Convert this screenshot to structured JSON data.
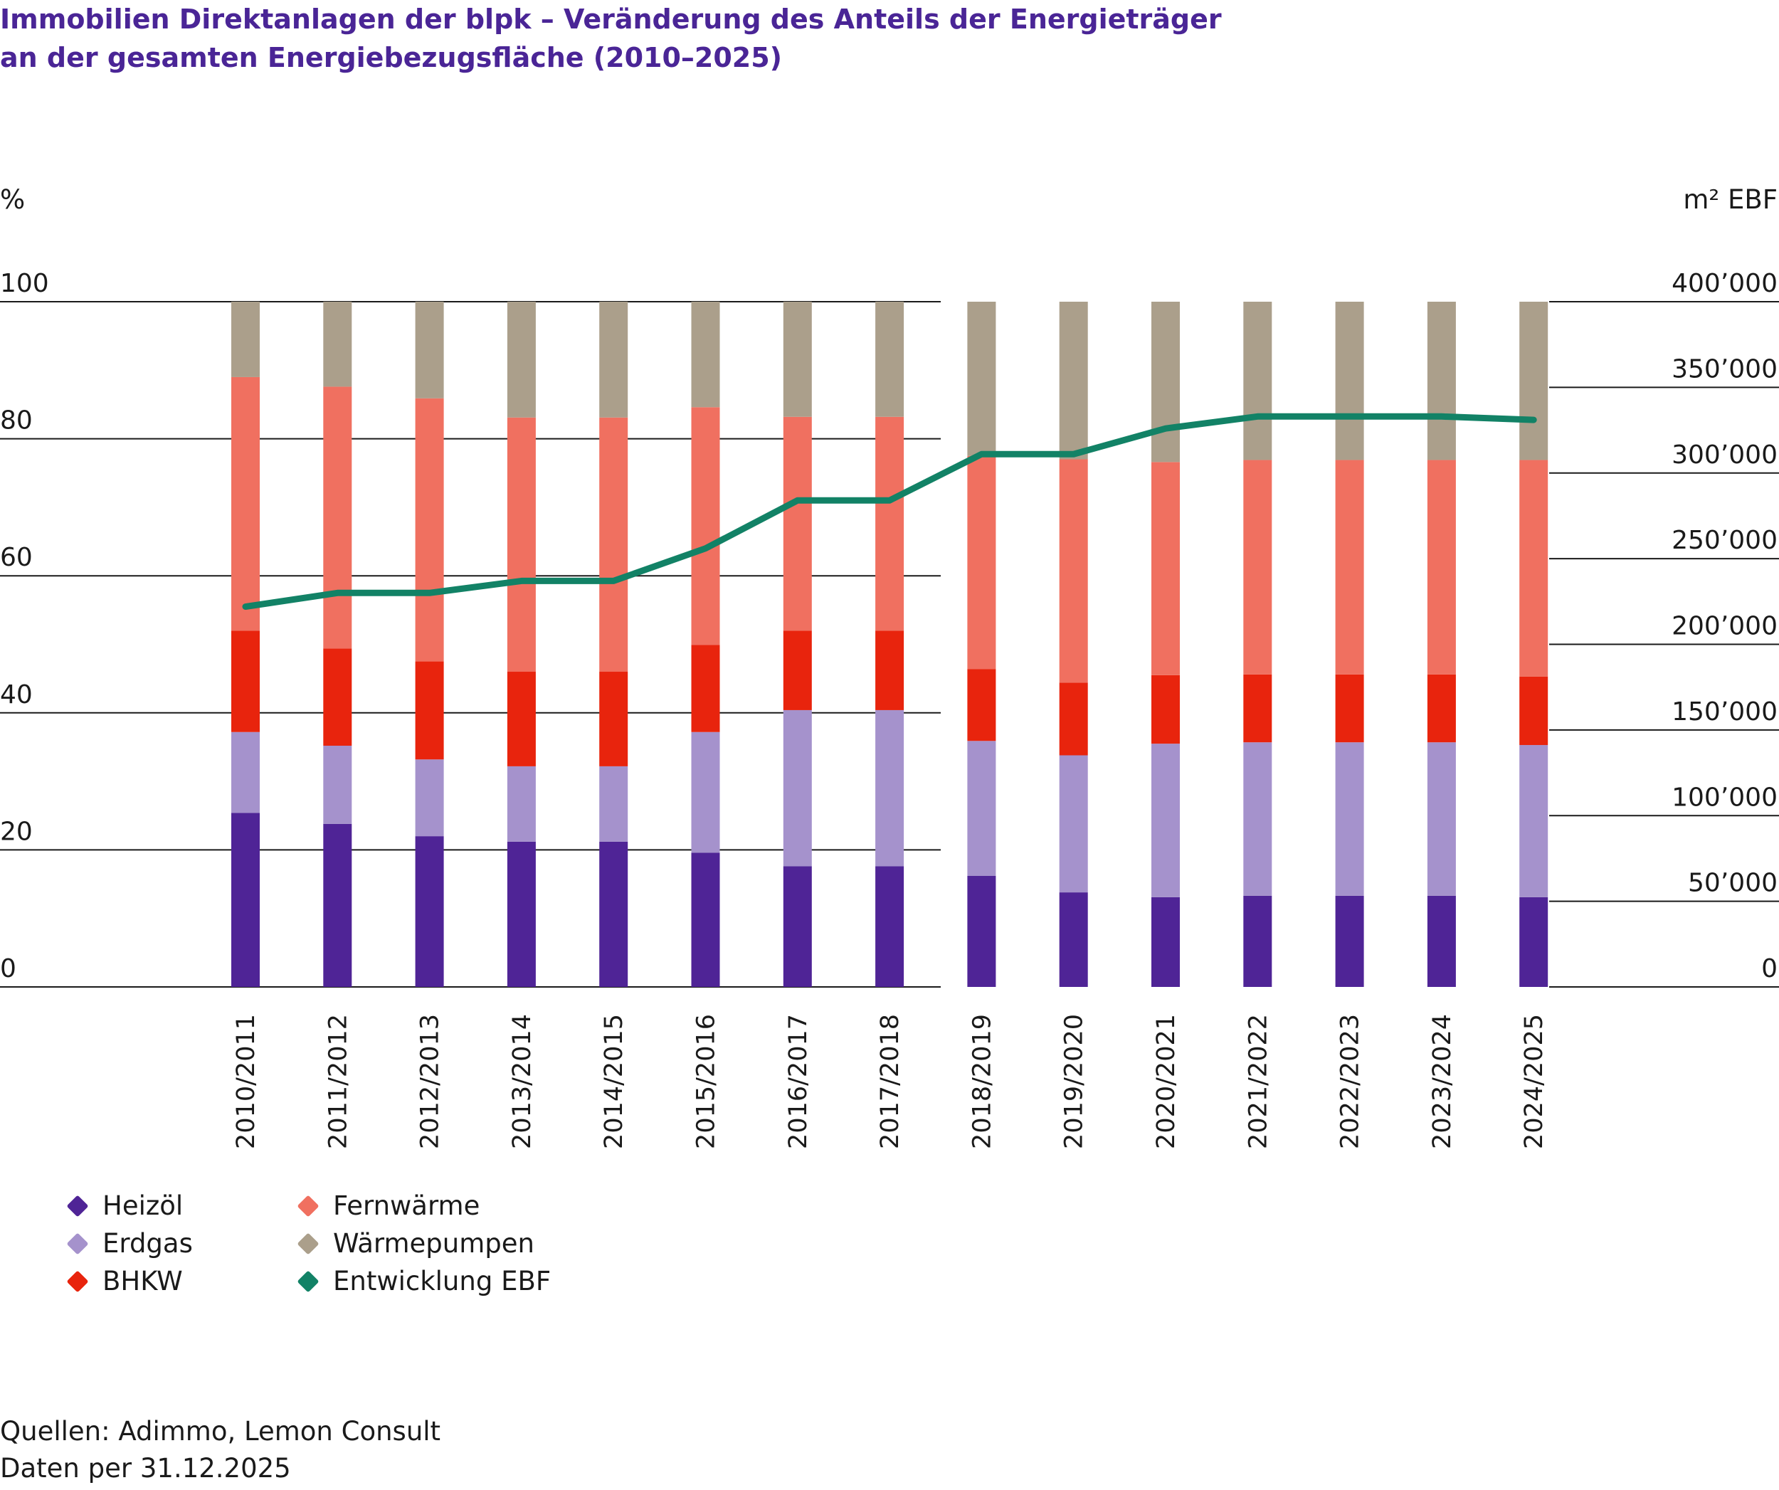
{
  "title": {
    "line1": "Immobilien Direktanlagen der blpk – Veränderung des Anteils der Energieträger",
    "line2": "an der gesamten Energiebezugsfläche (2010–2025)"
  },
  "colors": {
    "title": "#4a2596",
    "heizoel": "#4f2496",
    "erdgas": "#a592cc",
    "bhkw": "#e8240d",
    "fernwaerme": "#f07060",
    "waermepumpen": "#ab9f8b",
    "ebf": "#128266"
  },
  "chart_data": {
    "type": "bar",
    "stacked": true,
    "categories": [
      "2010/2011",
      "2011/2012",
      "2012/2013",
      "2013/2014",
      "2014/2015",
      "2015/2016",
      "2016/2017",
      "2017/2018",
      "2018/2019",
      "2019/2020",
      "2020/2021",
      "2021/2022",
      "2022/2023",
      "2023/2024",
      "2024/2025"
    ],
    "y_left_label": "%",
    "y_left_ticks": [
      "0",
      "20",
      "40",
      "60",
      "80",
      "100"
    ],
    "y_left_range": [
      0,
      100
    ],
    "y_right_label": "m² EBF",
    "y_right_ticks": [
      "0",
      "50’000",
      "100’000",
      "150’000",
      "200’000",
      "250’000",
      "300’000",
      "350’000",
      "400’000"
    ],
    "y_right_range": [
      0,
      400000
    ],
    "series": [
      {
        "name": "Heizöl",
        "key": "heizoel",
        "values": [
          25.4,
          23.8,
          22.0,
          21.2,
          21.2,
          19.6,
          17.6,
          17.6,
          16.2,
          13.8,
          13.1,
          13.3,
          13.3,
          13.3,
          13.1
        ]
      },
      {
        "name": "Erdgas",
        "key": "erdgas",
        "values": [
          11.8,
          11.4,
          11.2,
          11.0,
          11.0,
          17.6,
          22.8,
          22.8,
          19.7,
          20.0,
          22.4,
          22.4,
          22.4,
          22.4,
          22.2
        ]
      },
      {
        "name": "BHKW",
        "key": "bhkw",
        "values": [
          14.8,
          14.2,
          14.3,
          13.8,
          13.8,
          12.7,
          11.6,
          11.6,
          10.5,
          10.6,
          10.0,
          9.9,
          9.9,
          9.9,
          10.0
        ]
      },
      {
        "name": "Fernwärme",
        "key": "fernwaerme",
        "values": [
          37.0,
          38.2,
          38.4,
          37.1,
          37.1,
          34.7,
          31.2,
          31.2,
          31.1,
          32.6,
          31.1,
          31.3,
          31.3,
          31.3,
          31.6
        ]
      },
      {
        "name": "Wärmepumpen",
        "key": "waermepumpen",
        "values": [
          11.0,
          12.4,
          14.1,
          16.9,
          16.9,
          15.4,
          16.8,
          16.8,
          22.5,
          23.0,
          23.4,
          23.1,
          23.1,
          23.1,
          23.1
        ]
      }
    ],
    "line": {
      "name": "Entwicklung EBF",
      "key": "ebf",
      "axis": "right",
      "values": [
        222000,
        230000,
        230000,
        237000,
        237000,
        256000,
        284000,
        284000,
        311000,
        311000,
        326000,
        333000,
        333000,
        333000,
        331000
      ]
    },
    "grid": true,
    "legend_position": "bottom-left"
  },
  "source": {
    "line1": "Quellen: Adimmo, Lemon Consult",
    "line2": "Daten per 31.12.2025"
  }
}
